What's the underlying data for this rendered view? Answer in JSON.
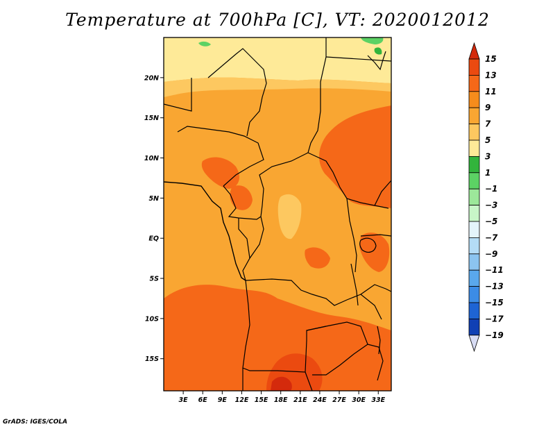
{
  "title": "Temperature at 700hPa [C], VT: 2020012012",
  "credit": "GrADS: IGES/COLA",
  "map": {
    "lon_range": [
      0,
      35
    ],
    "lat_range": [
      -19,
      25
    ],
    "lat_ticks": [
      {
        "value": 20,
        "label": "20N"
      },
      {
        "value": 15,
        "label": "15N"
      },
      {
        "value": 10,
        "label": "10N"
      },
      {
        "value": 5,
        "label": "5N"
      },
      {
        "value": 0,
        "label": "EQ"
      },
      {
        "value": -5,
        "label": "5S"
      },
      {
        "value": -10,
        "label": "10S"
      },
      {
        "value": -15,
        "label": "15S"
      }
    ],
    "lon_ticks": [
      {
        "value": 3,
        "label": "3E"
      },
      {
        "value": 6,
        "label": "6E"
      },
      {
        "value": 9,
        "label": "9E"
      },
      {
        "value": 12,
        "label": "12E"
      },
      {
        "value": 15,
        "label": "15E"
      },
      {
        "value": 18,
        "label": "18E"
      },
      {
        "value": 21,
        "label": "21E"
      },
      {
        "value": 24,
        "label": "24E"
      },
      {
        "value": 27,
        "label": "27E"
      },
      {
        "value": 30,
        "label": "30E"
      },
      {
        "value": 33,
        "label": "33E"
      }
    ]
  },
  "colorbar": {
    "levels": [
      15,
      13,
      11,
      9,
      7,
      5,
      3,
      1,
      -1,
      -3,
      -5,
      -7,
      -9,
      -11,
      -13,
      -15,
      -17,
      -19
    ],
    "labels": [
      "15",
      "13",
      "11",
      "9",
      "7",
      "5",
      "3",
      "1",
      "−1",
      "−3",
      "−5",
      "−7",
      "−9",
      "−11",
      "−13",
      "−15",
      "−17",
      "−19"
    ],
    "colors": [
      "#d42a0c",
      "#eb4a10",
      "#f56818",
      "#f58c1c",
      "#f9a632",
      "#fdc860",
      "#feea98",
      "#32b43c",
      "#5cd264",
      "#9ce89a",
      "#c8f6c8",
      "#e4f4fb",
      "#b4dcf6",
      "#8cc4f0",
      "#5aa8ec",
      "#3c8ce6",
      "#1e64d4",
      "#1040b4",
      "#0c1870",
      "#d8dcf4"
    ]
  }
}
